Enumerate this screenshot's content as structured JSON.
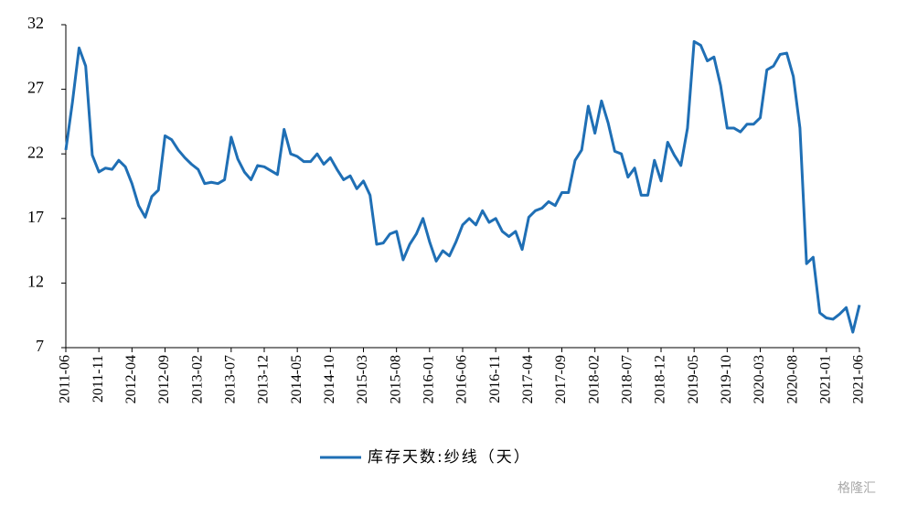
{
  "chart_data": {
    "type": "line",
    "categories": [
      "2011-06",
      null,
      null,
      null,
      null,
      "2011-11",
      null,
      null,
      null,
      null,
      "2012-04",
      null,
      null,
      null,
      null,
      "2012-09",
      null,
      null,
      null,
      null,
      "2013-02",
      null,
      null,
      null,
      null,
      "2013-07",
      null,
      null,
      null,
      null,
      "2013-12",
      null,
      null,
      null,
      null,
      "2014-05",
      null,
      null,
      null,
      null,
      "2014-10",
      null,
      null,
      null,
      null,
      "2015-03",
      null,
      null,
      null,
      null,
      "2015-08",
      null,
      null,
      null,
      null,
      "2016-01",
      null,
      null,
      null,
      null,
      "2016-06",
      null,
      null,
      null,
      null,
      "2016-11",
      null,
      null,
      null,
      null,
      "2017-04",
      null,
      null,
      null,
      null,
      "2017-09",
      null,
      null,
      null,
      null,
      "2018-02",
      null,
      null,
      null,
      null,
      "2018-07",
      null,
      null,
      null,
      null,
      "2018-12",
      null,
      null,
      null,
      null,
      "2019-05",
      null,
      null,
      null,
      null,
      "2019-10",
      null,
      null,
      null,
      null,
      "2020-03",
      null,
      null,
      null,
      null,
      "2020-08",
      null,
      null,
      null,
      null,
      "2021-01",
      null,
      null,
      null,
      null,
      "2021-06"
    ],
    "series": [
      {
        "name": "库存天数:纱线（天）",
        "color": "#1f6fb5",
        "values": [
          22.3,
          26,
          30.2,
          28.8,
          21.9,
          20.6,
          20.9,
          20.8,
          21.5,
          21.0,
          19.7,
          18.0,
          17.1,
          18.7,
          19.2,
          23.4,
          23.1,
          22.3,
          21.7,
          21.2,
          20.8,
          19.7,
          19.8,
          19.7,
          20.0,
          23.3,
          21.6,
          20.6,
          20.0,
          21.1,
          21.0,
          20.7,
          20.4,
          23.9,
          22.0,
          21.8,
          21.4,
          21.4,
          22.0,
          21.2,
          21.7,
          20.8,
          20.0,
          20.3,
          19.3,
          19.9,
          18.8,
          15.0,
          15.1,
          15.8,
          16.0,
          13.8,
          15.0,
          15.8,
          17.0,
          15.2,
          13.7,
          14.5,
          14.1,
          15.2,
          16.5,
          17.0,
          16.5,
          17.6,
          16.7,
          17.0,
          16.0,
          15.6,
          16.0,
          14.6,
          17.1,
          17.6,
          17.8,
          18.3,
          18.0,
          19.0,
          19.0,
          21.5,
          22.3,
          25.7,
          23.6,
          26.1,
          24.4,
          22.2,
          22.0,
          20.2,
          20.9,
          18.8,
          18.8,
          21.5,
          19.9,
          22.9,
          21.9,
          21.1,
          24.0,
          30.7,
          30.4,
          29.2,
          29.5,
          27.3,
          24.0,
          24.0,
          23.7,
          24.3,
          24.3,
          24.8,
          28.5,
          28.8,
          29.7,
          29.8,
          28.0,
          24.0,
          13.5,
          14.0,
          9.7,
          9.3,
          9.2,
          9.6,
          10.1,
          8.2,
          10.3
        ]
      }
    ],
    "ylim": [
      7,
      32
    ],
    "yticks": [
      7,
      12,
      17,
      22,
      27,
      32
    ],
    "grid": false,
    "legend": "bottom",
    "watermark": "格隆汇"
  }
}
